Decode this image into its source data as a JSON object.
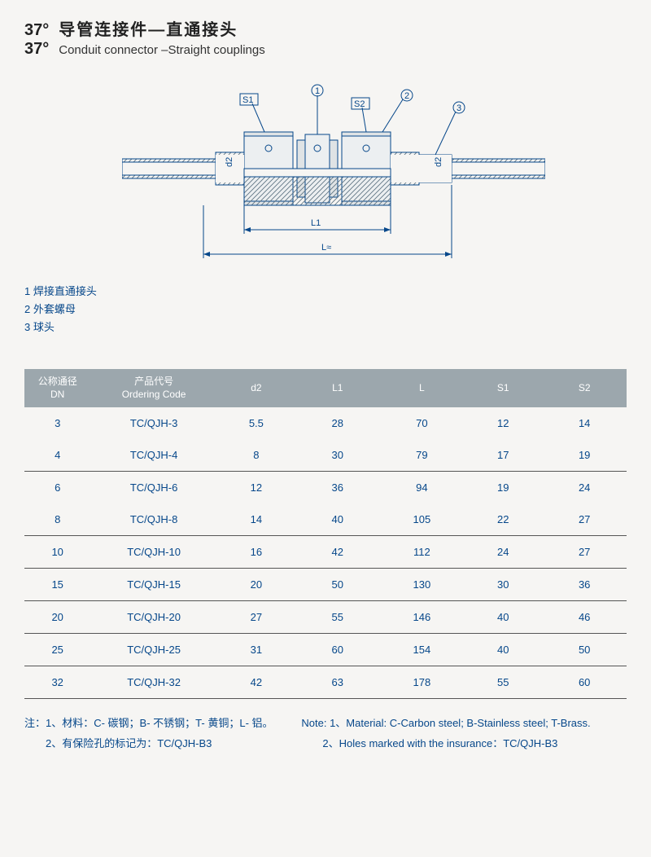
{
  "header": {
    "degree": "37°",
    "title_cn": "导管连接件—直通接头",
    "title_en": "Conduit connector –Straight couplings"
  },
  "diagram": {
    "callouts": {
      "s1": "S1",
      "one": "1",
      "s2": "S2",
      "two": "2",
      "three": "3",
      "d2_left": "d2",
      "d2_right": "d2",
      "L1": "L1",
      "L": "L≈"
    }
  },
  "legend": {
    "item1": "1 焊接直通接头",
    "item2": "2 外套螺母",
    "item3": "3 球头"
  },
  "table": {
    "columns": [
      {
        "cn": "公称通径",
        "en": "DN"
      },
      {
        "cn": "产品代号",
        "en": "Ordering Code"
      },
      {
        "cn": "",
        "en": "d2"
      },
      {
        "cn": "",
        "en": "L1"
      },
      {
        "cn": "",
        "en": "L"
      },
      {
        "cn": "",
        "en": "S1"
      },
      {
        "cn": "",
        "en": "S2"
      }
    ],
    "rows": [
      {
        "cells": [
          "3",
          "TC/QJH-3",
          "5.5",
          "28",
          "70",
          "12",
          "14"
        ],
        "border": false
      },
      {
        "cells": [
          "4",
          "TC/QJH-4",
          "8",
          "30",
          "79",
          "17",
          "19"
        ],
        "border": true
      },
      {
        "cells": [
          "6",
          "TC/QJH-6",
          "12",
          "36",
          "94",
          "19",
          "24"
        ],
        "border": false
      },
      {
        "cells": [
          "8",
          "TC/QJH-8",
          "14",
          "40",
          "105",
          "22",
          "27"
        ],
        "border": true
      },
      {
        "cells": [
          "10",
          "TC/QJH-10",
          "16",
          "42",
          "112",
          "24",
          "27"
        ],
        "border": true
      },
      {
        "cells": [
          "15",
          "TC/QJH-15",
          "20",
          "50",
          "130",
          "30",
          "36"
        ],
        "border": true
      },
      {
        "cells": [
          "20",
          "TC/QJH-20",
          "27",
          "55",
          "146",
          "40",
          "46"
        ],
        "border": true
      },
      {
        "cells": [
          "25",
          "TC/QJH-25",
          "31",
          "60",
          "154",
          "40",
          "50"
        ],
        "border": true
      },
      {
        "cells": [
          "32",
          "TC/QJH-32",
          "42",
          "63",
          "178",
          "55",
          "60"
        ],
        "border": true
      }
    ],
    "col_widths": [
      "11%",
      "21%",
      "13%",
      "14%",
      "14%",
      "13%",
      "14%"
    ]
  },
  "notes": {
    "row1_left": "注：1、材料：C- 碳钢；B- 不锈钢；T- 黄铜；L- 铝。",
    "row1_right": "Note: 1、Material: C-Carbon steel; B-Stainless steel; T-Brass.",
    "row2_left": "　　2、有保险孔的标记为：TC/QJH-B3",
    "row2_right": "　　2、Holes marked with the insurance：TC/QJH-B3"
  },
  "colors": {
    "header_bg": "#9ca7ad",
    "text_blue": "#06478a",
    "page_bg": "#f6f5f3"
  }
}
